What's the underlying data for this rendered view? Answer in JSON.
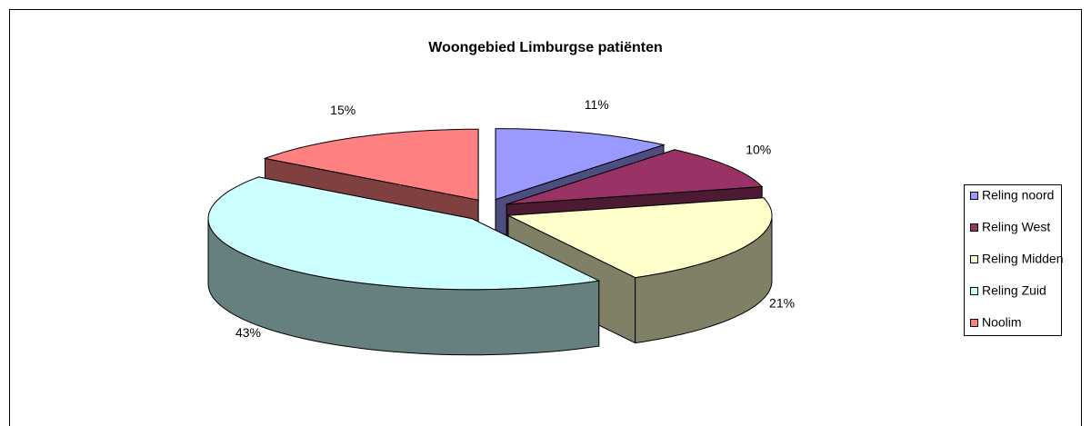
{
  "chart_data": {
    "type": "pie3d",
    "title": "Woongebied Limburgse patiënten",
    "categories": [
      "Reling noord",
      "Reling West",
      "Reling Midden",
      "Reling Zuid",
      "Noolim"
    ],
    "values": [
      11,
      10,
      21,
      43,
      15
    ],
    "value_labels": [
      "11%",
      "10%",
      "21%",
      "43%",
      "15%"
    ],
    "colors": [
      "#9999ff",
      "#993366",
      "#ffffcc",
      "#ccffff",
      "#ff8080"
    ],
    "legend": "right"
  }
}
